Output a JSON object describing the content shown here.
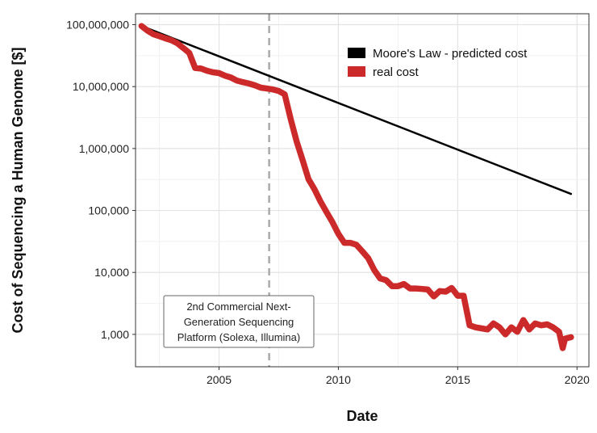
{
  "chart_data": {
    "type": "line",
    "xlabel": "Date",
    "ylabel": "Cost of Sequencing a Human Genome [$]",
    "x_scale": "linear",
    "y_scale": "log",
    "xlim": [
      2001.5,
      2020.5
    ],
    "ylim": [
      300,
      150000000
    ],
    "x_ticks": [
      2005,
      2010,
      2015,
      2020
    ],
    "x_tick_labels": [
      "2005",
      "2010",
      "2015",
      "2020"
    ],
    "y_ticks": [
      1000,
      10000,
      100000,
      1000000,
      10000000,
      100000000
    ],
    "y_tick_labels": [
      "1,000",
      "10,000",
      "100,000",
      "1,000,000",
      "10,000,000",
      "100,000,000"
    ],
    "grid": true,
    "legend_position": "top-right",
    "series": [
      {
        "name": "Moore's Law - predicted cost",
        "color": "#000000",
        "x": [
          2001.75,
          2019.75
        ],
        "y": [
          95000000,
          185000
        ]
      },
      {
        "name": "real cost",
        "color": "#cc2a2a",
        "x": [
          2001.75,
          2002.0,
          2002.25,
          2002.5,
          2002.75,
          2003.0,
          2003.25,
          2003.5,
          2003.75,
          2004.0,
          2004.25,
          2004.5,
          2004.75,
          2005.0,
          2005.25,
          2005.5,
          2005.75,
          2006.0,
          2006.25,
          2006.5,
          2006.75,
          2007.0,
          2007.25,
          2007.5,
          2007.75,
          2008.0,
          2008.25,
          2008.5,
          2008.75,
          2009.0,
          2009.25,
          2009.5,
          2009.75,
          2010.0,
          2010.25,
          2010.5,
          2010.75,
          2011.0,
          2011.25,
          2011.5,
          2011.75,
          2012.0,
          2012.25,
          2012.5,
          2012.75,
          2013.0,
          2013.25,
          2013.5,
          2013.75,
          2014.0,
          2014.25,
          2014.5,
          2014.75,
          2015.0,
          2015.25,
          2015.5,
          2015.75,
          2016.0,
          2016.25,
          2016.5,
          2016.75,
          2017.0,
          2017.25,
          2017.5,
          2017.75,
          2018.0,
          2018.25,
          2018.5,
          2018.75,
          2019.0,
          2019.25,
          2019.4,
          2019.5,
          2019.75
        ],
        "y": [
          95000000,
          80000000,
          70000000,
          65000000,
          60000000,
          56000000,
          50000000,
          42000000,
          35000000,
          20000000,
          19500000,
          18000000,
          17000000,
          16500000,
          15000000,
          14000000,
          12500000,
          11800000,
          11200000,
          10500000,
          9600000,
          9300000,
          9000000,
          8500000,
          7500000,
          3000000,
          1300000,
          650000,
          320000,
          220000,
          140000,
          95000,
          65000,
          42000,
          30000,
          30000,
          28000,
          22000,
          17000,
          11000,
          8000,
          7500,
          6000,
          6000,
          6500,
          5500,
          5500,
          5400,
          5300,
          4100,
          5000,
          4900,
          5600,
          4200,
          4200,
          1400,
          1300,
          1250,
          1200,
          1500,
          1300,
          1000,
          1300,
          1100,
          1700,
          1200,
          1500,
          1400,
          1450,
          1300,
          1100,
          600,
          850,
          900
        ]
      }
    ],
    "annotations": [
      {
        "type": "vline",
        "x": 2007.1,
        "style": "dashed",
        "color": "#aaaaaa"
      },
      {
        "type": "text_box",
        "lines": [
          "2nd Commercial Next-",
          "Generation Sequencing",
          "Platform (Solexa, Illumina)"
        ]
      }
    ]
  }
}
